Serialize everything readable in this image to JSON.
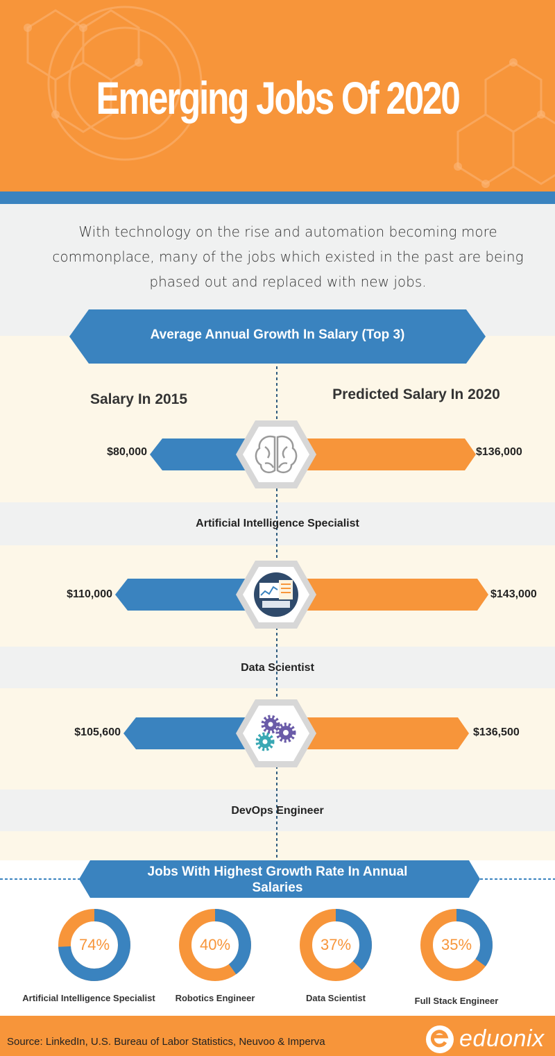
{
  "header": {
    "title": "Emerging Jobs Of 2020"
  },
  "intro": {
    "text": "With technology on the rise and automation becoming more commonplace, many of the jobs which existed in the past are being phased out and replaced with new jobs."
  },
  "salary_section": {
    "banner": "Average Annual Growth In Salary (Top 3)",
    "col_left": "Salary In 2015",
    "col_right": "Predicted Salary In 2020",
    "rows": [
      {
        "job": "Artificial Intelligence Specialist",
        "salary_2015": "$80,000",
        "salary_2020": "$136,000",
        "icon": "brain-icon"
      },
      {
        "job": "Data Scientist",
        "salary_2015": "$110,000",
        "salary_2020": "$143,000",
        "icon": "data-dashboard-icon"
      },
      {
        "job": "DevOps Engineer",
        "salary_2015": "$105,600",
        "salary_2020": "$136,500",
        "icon": "gears-icon"
      }
    ]
  },
  "growth_section": {
    "banner_line1": "Jobs With Highest Growth Rate In Annual",
    "banner_line2": "Salaries",
    "items": [
      {
        "label": "Artificial Intelligence Specialist",
        "pct_text": "74%",
        "value": 74
      },
      {
        "label": "Robotics Engineer",
        "pct_text": "40%",
        "value": 40
      },
      {
        "label": "Data Scientist",
        "pct_text": "37%",
        "value": 37
      },
      {
        "label": "Full Stack Engineer",
        "pct_text": "35%",
        "value": 35
      }
    ]
  },
  "colors": {
    "orange": "#f7953a",
    "blue": "#3a83bf",
    "cream": "#fdf7e8",
    "grey": "#f0f1f1"
  },
  "footer": {
    "source": "Source: LinkedIn, U.S. Bureau of Labor Statistics, Neuvoo & Imperva",
    "brand": "eduonix"
  }
}
